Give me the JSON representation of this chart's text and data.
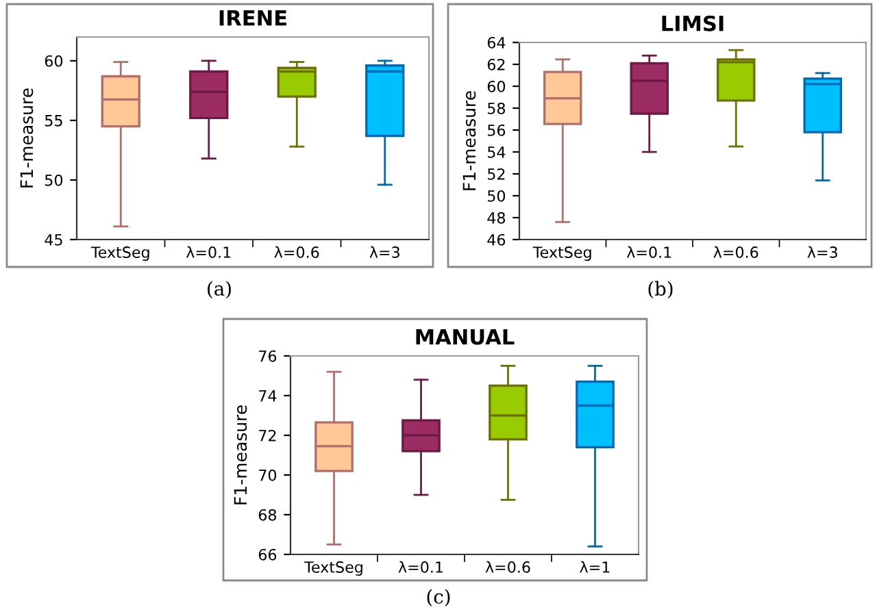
{
  "chart_data": [
    {
      "type": "box",
      "title": "IRENE",
      "ylabel": "F1-measure",
      "categories": [
        "TextSeg",
        "λ=0.1",
        "λ=0.6",
        "λ=3"
      ],
      "ylim": [
        45,
        62
      ],
      "yticks": [
        45,
        50,
        55,
        60
      ],
      "grid": false,
      "annotations": [
        "(a)"
      ],
      "colors": [
        "#ffc896",
        "#9b2d63",
        "#99cc00",
        "#00bfff"
      ],
      "boxes": [
        {
          "low": 46.1,
          "q1": 54.5,
          "median": 56.75,
          "q3": 58.7,
          "high": 59.9
        },
        {
          "low": 51.8,
          "q1": 55.2,
          "median": 57.4,
          "q3": 59.1,
          "high": 60.0
        },
        {
          "low": 52.8,
          "q1": 57.0,
          "median": 59.1,
          "q3": 59.4,
          "high": 59.9
        },
        {
          "low": 49.6,
          "q1": 53.7,
          "median": 59.1,
          "q3": 59.6,
          "high": 60.0
        }
      ]
    },
    {
      "type": "box",
      "title": "LIMSI",
      "ylabel": "F1-measure",
      "categories": [
        "TextSeg",
        "λ=0.1",
        "λ=0.6",
        "λ=3"
      ],
      "ylim": [
        46,
        64
      ],
      "yticks": [
        46,
        48,
        50,
        52,
        54,
        56,
        58,
        60,
        62,
        64
      ],
      "grid": false,
      "annotations": [
        "(b)"
      ],
      "colors": [
        "#ffc896",
        "#9b2d63",
        "#99cc00",
        "#00bfff"
      ],
      "boxes": [
        {
          "low": 47.6,
          "q1": 56.55,
          "median": 58.9,
          "q3": 61.3,
          "high": 62.45
        },
        {
          "low": 54.0,
          "q1": 57.5,
          "median": 60.5,
          "q3": 62.1,
          "high": 62.8
        },
        {
          "low": 54.5,
          "q1": 58.7,
          "median": 62.2,
          "q3": 62.45,
          "high": 63.3
        },
        {
          "low": 51.4,
          "q1": 55.8,
          "median": 60.2,
          "q3": 60.7,
          "high": 61.2
        }
      ]
    },
    {
      "type": "box",
      "title": "MANUAL",
      "ylabel": "F1-measure",
      "categories": [
        "TextSeg",
        "λ=0.1",
        "λ=0.6",
        "λ=1"
      ],
      "ylim": [
        66,
        76
      ],
      "yticks": [
        66,
        68,
        70,
        72,
        74,
        76
      ],
      "grid": false,
      "annotations": [
        "(c)"
      ],
      "colors": [
        "#ffc896",
        "#9b2d63",
        "#99cc00",
        "#00bfff"
      ],
      "boxes": [
        {
          "low": 66.5,
          "q1": 70.2,
          "median": 71.45,
          "q3": 72.65,
          "high": 75.2
        },
        {
          "low": 69.0,
          "q1": 71.2,
          "median": 72.0,
          "q3": 72.75,
          "high": 74.8
        },
        {
          "low": 68.75,
          "q1": 71.8,
          "median": 73.0,
          "q3": 74.5,
          "high": 75.5
        },
        {
          "low": 66.4,
          "q1": 71.4,
          "median": 73.5,
          "q3": 74.7,
          "high": 75.5
        }
      ]
    }
  ]
}
